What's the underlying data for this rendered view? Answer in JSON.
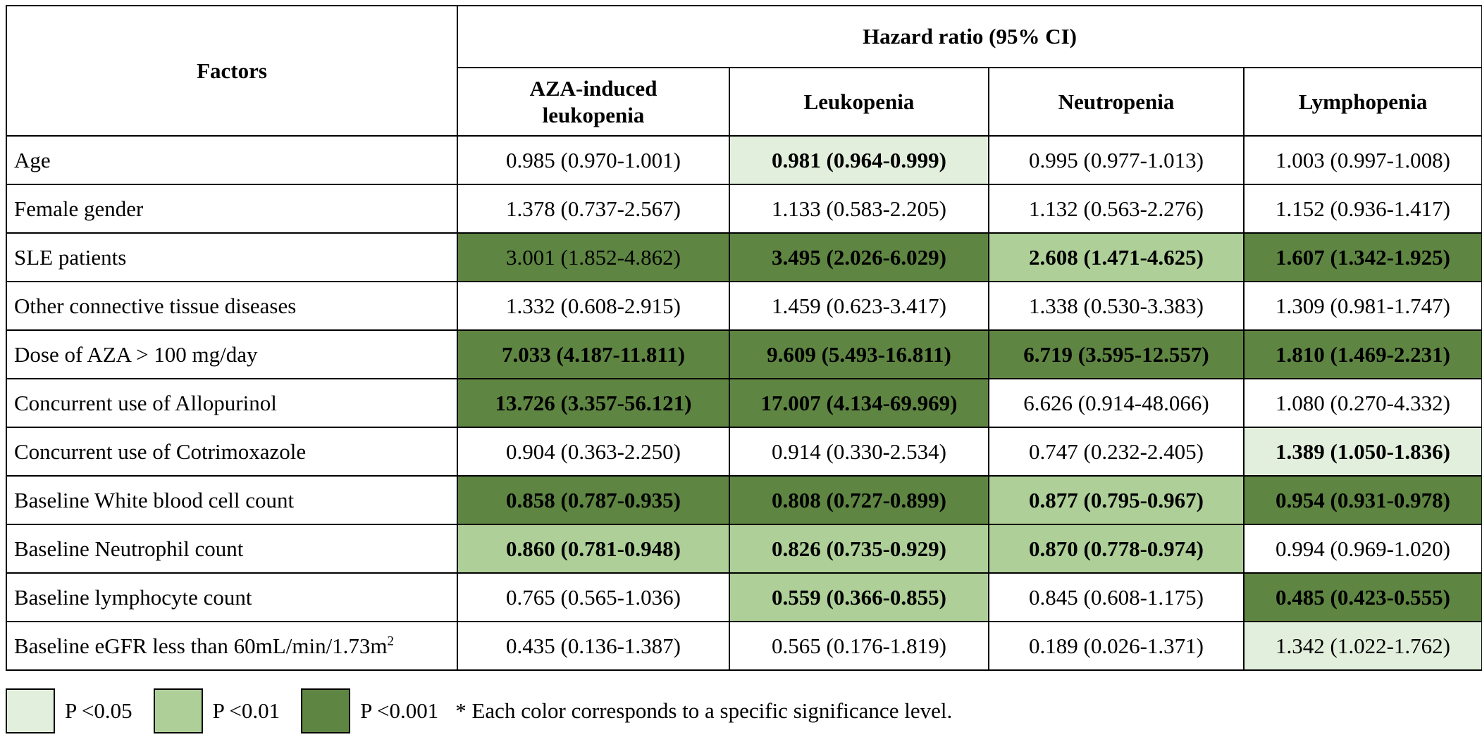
{
  "table": {
    "factors_header": "Factors",
    "group_header": "Hazard ratio (95% CI)",
    "columns": [
      "AZA-induced leukopenia",
      "Leukopenia",
      "Neutropenia",
      "Lymphopenia"
    ],
    "rows": [
      {
        "factor": "Age",
        "cells": [
          {
            "text": "0.985 (0.970-1.001)",
            "level": "none",
            "bold": false
          },
          {
            "text": "0.981 (0.964-0.999)",
            "level": "p05",
            "bold": true
          },
          {
            "text": "0.995 (0.977-1.013)",
            "level": "none",
            "bold": false
          },
          {
            "text": "1.003 (0.997-1.008)",
            "level": "none",
            "bold": false
          }
        ]
      },
      {
        "factor": "Female gender",
        "cells": [
          {
            "text": "1.378 (0.737-2.567)",
            "level": "none",
            "bold": false
          },
          {
            "text": "1.133 (0.583-2.205)",
            "level": "none",
            "bold": false
          },
          {
            "text": "1.132 (0.563-2.276)",
            "level": "none",
            "bold": false
          },
          {
            "text": "1.152 (0.936-1.417)",
            "level": "none",
            "bold": false
          }
        ]
      },
      {
        "factor": "SLE patients",
        "cells": [
          {
            "text": "3.001 (1.852-4.862)",
            "level": "p001",
            "bold": false
          },
          {
            "text": "3.495 (2.026-6.029)",
            "level": "p001",
            "bold": true
          },
          {
            "text": "2.608 (1.471-4.625)",
            "level": "p01",
            "bold": true
          },
          {
            "text": "1.607 (1.342-1.925)",
            "level": "p001",
            "bold": true
          }
        ]
      },
      {
        "factor": "Other connective tissue diseases",
        "cells": [
          {
            "text": "1.332 (0.608-2.915)",
            "level": "none",
            "bold": false
          },
          {
            "text": "1.459 (0.623-3.417)",
            "level": "none",
            "bold": false
          },
          {
            "text": "1.338 (0.530-3.383)",
            "level": "none",
            "bold": false
          },
          {
            "text": "1.309 (0.981-1.747)",
            "level": "none",
            "bold": false
          }
        ]
      },
      {
        "factor": "Dose of AZA > 100 mg/day",
        "cells": [
          {
            "text": "7.033 (4.187-11.811)",
            "level": "p001",
            "bold": true
          },
          {
            "text": "9.609 (5.493-16.811)",
            "level": "p001",
            "bold": true
          },
          {
            "text": "6.719 (3.595-12.557)",
            "level": "p001",
            "bold": true
          },
          {
            "text": "1.810 (1.469-2.231)",
            "level": "p001",
            "bold": true
          }
        ]
      },
      {
        "factor": "Concurrent use of Allopurinol",
        "cells": [
          {
            "text": "13.726 (3.357-56.121)",
            "level": "p001",
            "bold": true
          },
          {
            "text": "17.007 (4.134-69.969)",
            "level": "p001",
            "bold": true
          },
          {
            "text": "6.626 (0.914-48.066)",
            "level": "none",
            "bold": false
          },
          {
            "text": "1.080 (0.270-4.332)",
            "level": "none",
            "bold": false
          }
        ]
      },
      {
        "factor": "Concurrent use of Cotrimoxazole",
        "cells": [
          {
            "text": "0.904 (0.363-2.250)",
            "level": "none",
            "bold": false
          },
          {
            "text": "0.914 (0.330-2.534)",
            "level": "none",
            "bold": false
          },
          {
            "text": "0.747 (0.232-2.405)",
            "level": "none",
            "bold": false
          },
          {
            "text": "1.389 (1.050-1.836)",
            "level": "p05",
            "bold": true
          }
        ]
      },
      {
        "factor": "Baseline White blood cell count",
        "cells": [
          {
            "text": "0.858 (0.787-0.935)",
            "level": "p001",
            "bold": true
          },
          {
            "text": "0.808 (0.727-0.899)",
            "level": "p001",
            "bold": true
          },
          {
            "text": "0.877 (0.795-0.967)",
            "level": "p01",
            "bold": true
          },
          {
            "text": "0.954 (0.931-0.978)",
            "level": "p001",
            "bold": true
          }
        ]
      },
      {
        "factor": "Baseline Neutrophil count",
        "cells": [
          {
            "text": "0.860 (0.781-0.948)",
            "level": "p01",
            "bold": true
          },
          {
            "text": "0.826 (0.735-0.929)",
            "level": "p01",
            "bold": true
          },
          {
            "text": "0.870 (0.778-0.974)",
            "level": "p01",
            "bold": true
          },
          {
            "text": "0.994 (0.969-1.020)",
            "level": "none",
            "bold": false
          }
        ]
      },
      {
        "factor": "Baseline lymphocyte count",
        "cells": [
          {
            "text": "0.765 (0.565-1.036)",
            "level": "none",
            "bold": false
          },
          {
            "text": "0.559 (0.366-0.855)",
            "level": "p01",
            "bold": true
          },
          {
            "text": "0.845 (0.608-1.175)",
            "level": "none",
            "bold": false
          },
          {
            "text": "0.485 (0.423-0.555)",
            "level": "p001",
            "bold": true
          }
        ]
      },
      {
        "factor": "Baseline eGFR less than 60mL/min/1.73m",
        "factor_sup": "2",
        "cells": [
          {
            "text": "0.435 (0.136-1.387)",
            "level": "none",
            "bold": false
          },
          {
            "text": "0.565 (0.176-1.819)",
            "level": "none",
            "bold": false
          },
          {
            "text": "0.189 (0.026-1.371)",
            "level": "none",
            "bold": false
          },
          {
            "text": "1.342 (1.022-1.762)",
            "level": "p05",
            "bold": false
          }
        ]
      }
    ]
  },
  "legend": {
    "items": [
      {
        "label": "P <0.05",
        "level": "p05"
      },
      {
        "label": "P <0.01",
        "level": "p01"
      },
      {
        "label": "P <0.001",
        "level": "p001"
      }
    ],
    "note": "* Each color corresponds to a specific significance level."
  },
  "colors": {
    "p05": "#e3efdd",
    "p01": "#aecf98",
    "p001": "#5e8541",
    "border": "#000000"
  }
}
